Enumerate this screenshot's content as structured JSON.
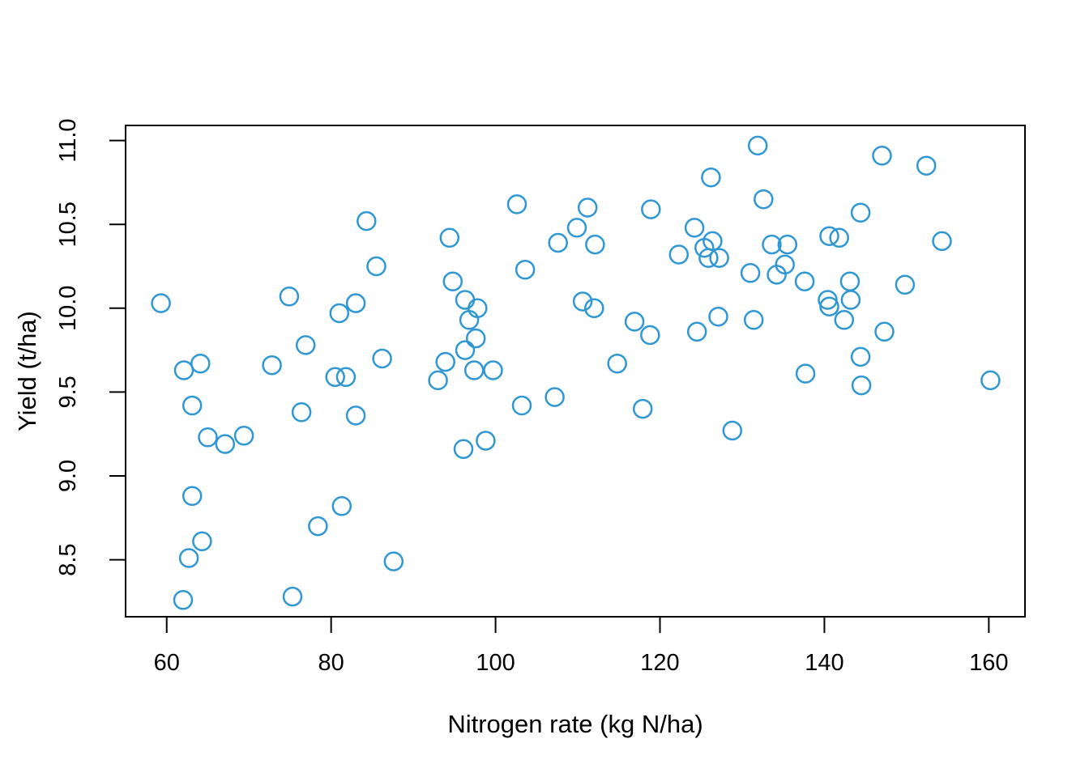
{
  "figure": {
    "background": "#ffffff",
    "frame_color": "#000000"
  },
  "chart_data": {
    "type": "scatter",
    "title": "",
    "xlabel": "Nitrogen rate (kg N/ha)",
    "ylabel": "Yield (t/ha)",
    "xlim": [
      55.0,
      164.4
    ],
    "ylim": [
      8.16,
      11.09
    ],
    "grid": false,
    "legend_position": "none",
    "x_ticks": [
      {
        "value": 60,
        "label": "60"
      },
      {
        "value": 80,
        "label": "80"
      },
      {
        "value": 100,
        "label": "100"
      },
      {
        "value": 120,
        "label": "120"
      },
      {
        "value": 140,
        "label": "140"
      },
      {
        "value": 160,
        "label": "160"
      }
    ],
    "y_ticks": [
      {
        "value": 8.5,
        "label": "8.5"
      },
      {
        "value": 9.0,
        "label": "9.0"
      },
      {
        "value": 9.5,
        "label": "9.5"
      },
      {
        "value": 10.0,
        "label": "10.0"
      },
      {
        "value": 10.5,
        "label": "10.5"
      },
      {
        "value": 11.0,
        "label": "11.0"
      }
    ],
    "marker": {
      "shape": "open-circle",
      "color": "#2E97D4",
      "radius_px": 11,
      "stroke_px": 2.5
    },
    "series_name": "yield-vs-nitrogen",
    "points": [
      [
        59.3,
        10.03
      ],
      [
        62.0,
        8.26
      ],
      [
        62.1,
        9.63
      ],
      [
        62.7,
        8.51
      ],
      [
        63.1,
        9.42
      ],
      [
        63.1,
        8.88
      ],
      [
        64.1,
        9.67
      ],
      [
        64.3,
        8.61
      ],
      [
        65.0,
        9.23
      ],
      [
        67.1,
        9.19
      ],
      [
        69.4,
        9.24
      ],
      [
        72.8,
        9.66
      ],
      [
        74.9,
        10.07
      ],
      [
        75.3,
        8.28
      ],
      [
        76.4,
        9.38
      ],
      [
        76.9,
        9.78
      ],
      [
        78.4,
        8.7
      ],
      [
        80.5,
        9.59
      ],
      [
        81.0,
        9.97
      ],
      [
        81.3,
        8.82
      ],
      [
        81.8,
        9.59
      ],
      [
        83.0,
        10.03
      ],
      [
        83.0,
        9.36
      ],
      [
        84.3,
        10.52
      ],
      [
        85.5,
        10.25
      ],
      [
        86.2,
        9.7
      ],
      [
        87.6,
        8.49
      ],
      [
        93.0,
        9.57
      ],
      [
        93.9,
        9.68
      ],
      [
        94.4,
        10.42
      ],
      [
        94.8,
        10.16
      ],
      [
        96.1,
        9.16
      ],
      [
        96.3,
        10.05
      ],
      [
        96.3,
        9.75
      ],
      [
        96.8,
        9.93
      ],
      [
        97.4,
        9.63
      ],
      [
        97.6,
        9.82
      ],
      [
        97.8,
        10.0
      ],
      [
        98.8,
        9.21
      ],
      [
        99.7,
        9.63
      ],
      [
        102.6,
        10.62
      ],
      [
        103.2,
        9.42
      ],
      [
        103.6,
        10.23
      ],
      [
        107.2,
        9.47
      ],
      [
        107.6,
        10.39
      ],
      [
        109.9,
        10.48
      ],
      [
        110.6,
        10.04
      ],
      [
        111.2,
        10.6
      ],
      [
        112.0,
        10.0
      ],
      [
        112.1,
        10.38
      ],
      [
        114.8,
        9.67
      ],
      [
        116.9,
        9.92
      ],
      [
        117.9,
        9.4
      ],
      [
        118.8,
        9.84
      ],
      [
        118.9,
        10.59
      ],
      [
        122.3,
        10.32
      ],
      [
        124.2,
        10.48
      ],
      [
        124.5,
        9.86
      ],
      [
        125.4,
        10.36
      ],
      [
        125.9,
        10.3
      ],
      [
        126.2,
        10.78
      ],
      [
        126.4,
        10.4
      ],
      [
        127.1,
        9.95
      ],
      [
        127.2,
        10.3
      ],
      [
        128.8,
        9.27
      ],
      [
        131.0,
        10.21
      ],
      [
        131.4,
        9.93
      ],
      [
        131.9,
        10.97
      ],
      [
        132.6,
        10.65
      ],
      [
        133.6,
        10.38
      ],
      [
        134.2,
        10.2
      ],
      [
        135.2,
        10.26
      ],
      [
        135.5,
        10.38
      ],
      [
        137.6,
        10.16
      ],
      [
        137.7,
        9.61
      ],
      [
        140.4,
        10.05
      ],
      [
        140.6,
        10.43
      ],
      [
        140.6,
        10.01
      ],
      [
        141.8,
        10.42
      ],
      [
        142.4,
        9.93
      ],
      [
        143.1,
        10.16
      ],
      [
        143.2,
        10.05
      ],
      [
        144.4,
        10.57
      ],
      [
        144.4,
        9.71
      ],
      [
        144.5,
        9.54
      ],
      [
        147.0,
        10.91
      ],
      [
        147.3,
        9.86
      ],
      [
        149.8,
        10.14
      ],
      [
        152.4,
        10.85
      ],
      [
        154.3,
        10.4
      ],
      [
        160.2,
        9.57
      ]
    ]
  }
}
